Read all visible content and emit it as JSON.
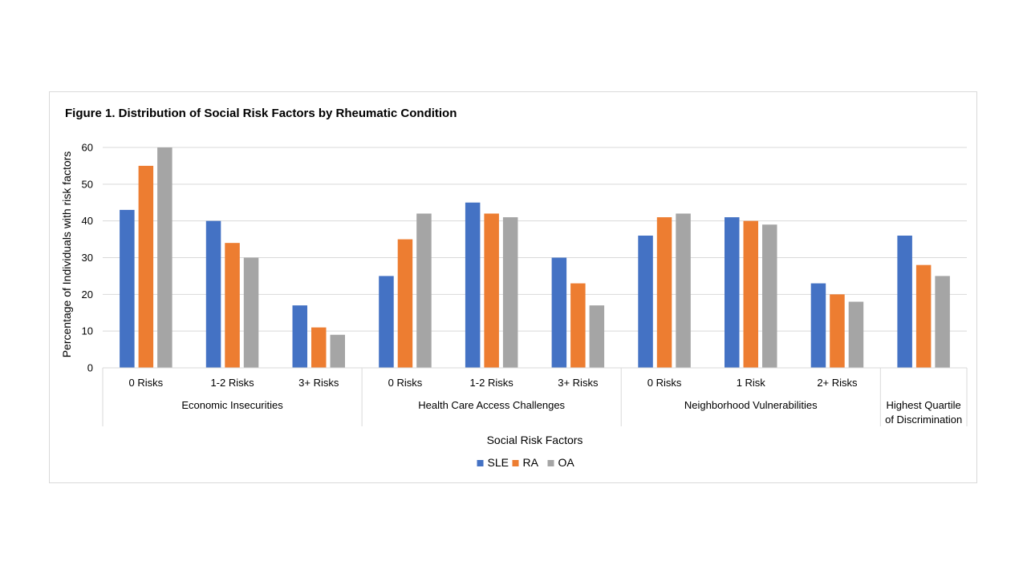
{
  "chart_data": {
    "type": "bar",
    "title": "Figure 1. Distribution of Social Risk Factors by Rheumatic Condition",
    "xlabel": "Social Risk Factors",
    "ylabel": "Percentage of Individuals with risk factors",
    "ylim": [
      0,
      60
    ],
    "yticks": [
      0,
      10,
      20,
      30,
      40,
      50,
      60
    ],
    "grid": true,
    "legend_position": "bottom",
    "categories": [
      "0 Risks",
      "1-2 Risks",
      "3+ Risks",
      "0 Risks",
      "1-2 Risks",
      "3+ Risks",
      "0 Risks",
      "1 Risk",
      "2+ Risks",
      ""
    ],
    "groups": [
      {
        "label": "Economic Insecurities",
        "count": 3
      },
      {
        "label": "Health Care Access Challenges",
        "count": 3
      },
      {
        "label": "Neighborhood Vulnerabilities",
        "count": 3
      },
      {
        "label": "Highest Quartile of Discrimination",
        "lines": [
          "Highest Quartile",
          "of Discrimination"
        ],
        "count": 1
      }
    ],
    "series": [
      {
        "name": "SLE",
        "color": "#4472C4",
        "values": [
          43,
          40,
          17,
          25,
          45,
          30,
          36,
          41,
          23,
          36
        ]
      },
      {
        "name": "RA",
        "color": "#ED7D31",
        "values": [
          55,
          34,
          11,
          35,
          42,
          23,
          41,
          40,
          20,
          28
        ]
      },
      {
        "name": "OA",
        "color": "#A5A5A5",
        "values": [
          60,
          30,
          9,
          42,
          41,
          17,
          42,
          39,
          18,
          25
        ]
      }
    ]
  }
}
